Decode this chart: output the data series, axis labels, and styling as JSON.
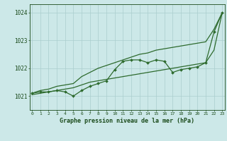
{
  "x": [
    0,
    1,
    2,
    3,
    4,
    5,
    6,
    7,
    8,
    9,
    10,
    11,
    12,
    13,
    14,
    15,
    16,
    17,
    18,
    19,
    20,
    21,
    22,
    23
  ],
  "y_main": [
    1021.1,
    1021.15,
    1021.15,
    1021.2,
    1021.15,
    1021.0,
    1021.2,
    1021.35,
    1021.45,
    1021.55,
    1021.95,
    1022.25,
    1022.3,
    1022.3,
    1022.2,
    1022.3,
    1022.25,
    1021.85,
    1021.95,
    1022.0,
    1022.05,
    1022.2,
    1023.3,
    1024.0
  ],
  "y_upper": [
    1021.1,
    1021.2,
    1021.25,
    1021.35,
    1021.4,
    1021.45,
    1021.7,
    1021.85,
    1022.0,
    1022.1,
    1022.2,
    1022.3,
    1022.4,
    1022.5,
    1022.55,
    1022.65,
    1022.7,
    1022.75,
    1022.8,
    1022.85,
    1022.9,
    1022.95,
    1023.4,
    1024.0
  ],
  "y_lower": [
    1021.05,
    1021.1,
    1021.15,
    1021.2,
    1021.25,
    1021.3,
    1021.4,
    1021.5,
    1021.55,
    1021.6,
    1021.65,
    1021.7,
    1021.75,
    1021.8,
    1021.85,
    1021.9,
    1021.95,
    1022.0,
    1022.05,
    1022.1,
    1022.15,
    1022.2,
    1022.65,
    1024.0
  ],
  "line_color": "#2d6a2d",
  "bg_color": "#cce8e8",
  "grid_color": "#aacece",
  "text_color": "#1a4a1a",
  "xlabel": "Graphe pression niveau de la mer (hPa)",
  "ylim": [
    1020.5,
    1024.3
  ],
  "yticks": [
    1021,
    1022,
    1023,
    1024
  ],
  "xticks": [
    0,
    1,
    2,
    3,
    4,
    5,
    6,
    7,
    8,
    9,
    10,
    11,
    12,
    13,
    14,
    15,
    16,
    17,
    18,
    19,
    20,
    21,
    22,
    23
  ]
}
